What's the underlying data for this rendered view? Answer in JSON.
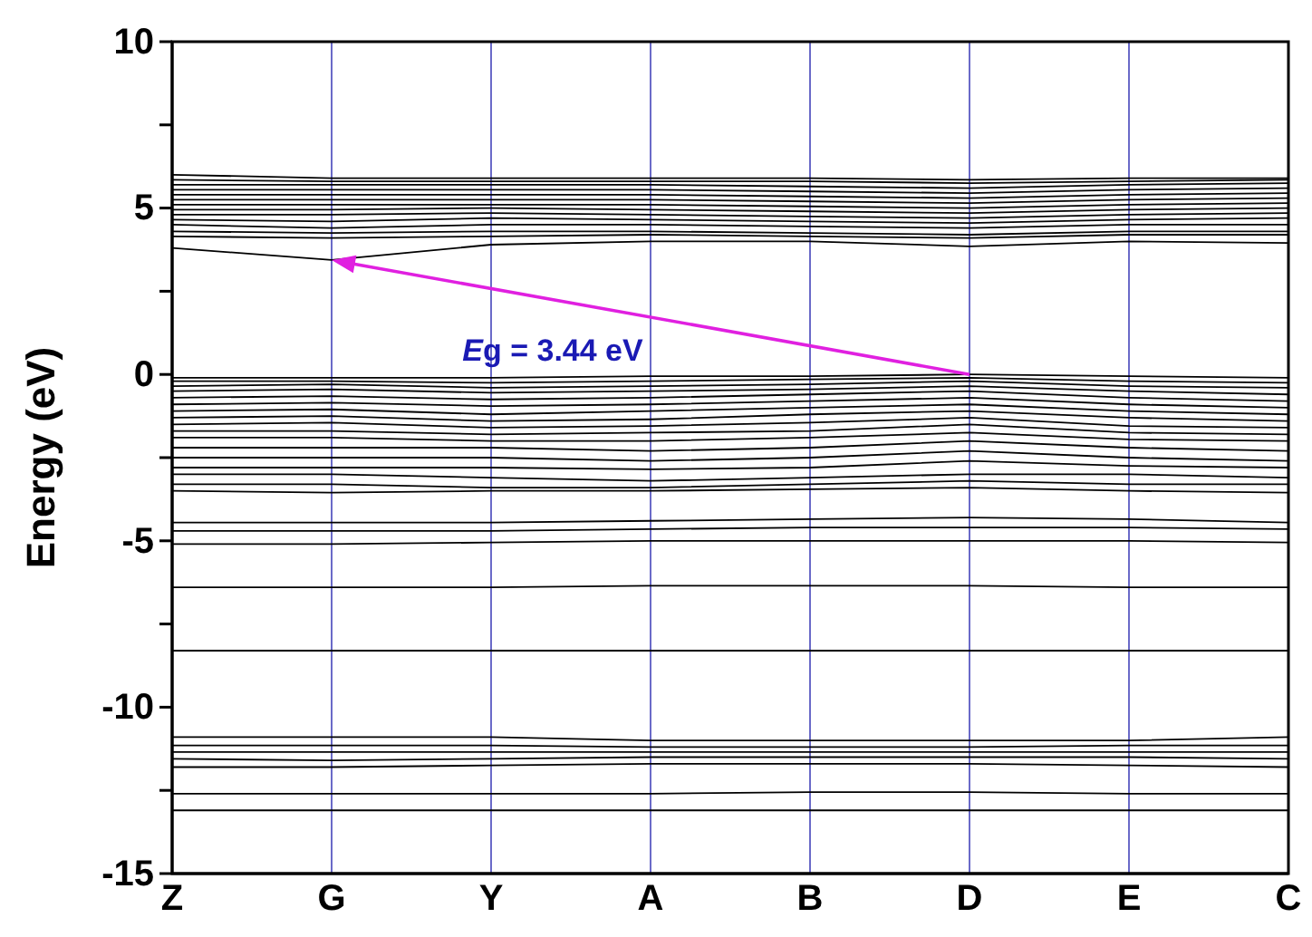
{
  "chart_data": {
    "type": "line",
    "ylabel": "Energy (eV)",
    "ylim": [
      -15,
      10
    ],
    "categories": [
      "Z",
      "G",
      "Y",
      "A",
      "B",
      "D",
      "E",
      "C"
    ],
    "yticks": [
      -15,
      {
        "value": -12.5,
        "label": null
      },
      -10,
      {
        "value": -7.5,
        "label": null
      },
      -5,
      {
        "value": -2.5,
        "label": null
      },
      0,
      {
        "value": 2.5,
        "label": null
      },
      5,
      {
        "value": 7.5,
        "label": null
      },
      10
    ],
    "grid": false,
    "ref_lines": [
      {
        "axis": "x",
        "value": "G",
        "color": "#6a6ac8"
      },
      {
        "axis": "x",
        "value": "Y",
        "color": "#6a6ac8"
      },
      {
        "axis": "x",
        "value": "A",
        "color": "#6a6ac8"
      },
      {
        "axis": "x",
        "value": "B",
        "color": "#6a6ac8"
      },
      {
        "axis": "x",
        "value": "D",
        "color": "#6a6ac8"
      },
      {
        "axis": "x",
        "value": "E",
        "color": "#6a6ac8"
      }
    ],
    "annotations": [
      "Eg = 3.44 eV"
    ],
    "series": [
      {
        "color": "#000000",
        "values": [
          3.8,
          3.44,
          3.9,
          4.0,
          4.0,
          3.85,
          4.0,
          3.95
        ]
      },
      {
        "color": "#000000",
        "values": [
          4.15,
          4.1,
          4.15,
          4.2,
          4.15,
          4.1,
          4.2,
          4.2
        ]
      },
      {
        "color": "#000000",
        "values": [
          4.3,
          4.25,
          4.3,
          4.3,
          4.25,
          4.2,
          4.3,
          4.3
        ]
      },
      {
        "color": "#000000",
        "values": [
          4.5,
          4.4,
          4.5,
          4.5,
          4.45,
          4.4,
          4.5,
          4.5
        ]
      },
      {
        "color": "#000000",
        "values": [
          4.65,
          4.6,
          4.7,
          4.65,
          4.6,
          4.55,
          4.65,
          4.7
        ]
      },
      {
        "color": "#000000",
        "values": [
          4.8,
          4.8,
          4.85,
          4.8,
          4.75,
          4.7,
          4.8,
          4.85
        ]
      },
      {
        "color": "#000000",
        "values": [
          4.95,
          4.95,
          5.0,
          4.95,
          4.9,
          4.85,
          4.95,
          5.0
        ]
      },
      {
        "color": "#000000",
        "values": [
          5.1,
          5.1,
          5.1,
          5.1,
          5.05,
          5.0,
          5.1,
          5.15
        ]
      },
      {
        "color": "#000000",
        "values": [
          5.25,
          5.25,
          5.25,
          5.25,
          5.2,
          5.15,
          5.25,
          5.3
        ]
      },
      {
        "color": "#000000",
        "values": [
          5.4,
          5.4,
          5.4,
          5.4,
          5.35,
          5.3,
          5.4,
          5.45
        ]
      },
      {
        "color": "#000000",
        "values": [
          5.55,
          5.55,
          5.55,
          5.55,
          5.5,
          5.45,
          5.55,
          5.6
        ]
      },
      {
        "color": "#000000",
        "values": [
          5.7,
          5.7,
          5.7,
          5.7,
          5.65,
          5.6,
          5.7,
          5.75
        ]
      },
      {
        "color": "#000000",
        "values": [
          5.85,
          5.8,
          5.8,
          5.8,
          5.8,
          5.75,
          5.8,
          5.85
        ]
      },
      {
        "color": "#000000",
        "values": [
          6.0,
          5.9,
          5.9,
          5.9,
          5.9,
          5.85,
          5.9,
          5.9
        ]
      },
      {
        "color": "#000000",
        "values": [
          -0.1,
          -0.1,
          -0.1,
          -0.05,
          -0.05,
          0,
          -0.05,
          -0.1
        ]
      },
      {
        "color": "#000000",
        "values": [
          -0.2,
          -0.2,
          -0.25,
          -0.2,
          -0.15,
          -0.1,
          -0.2,
          -0.25
        ]
      },
      {
        "color": "#000000",
        "values": [
          -0.35,
          -0.3,
          -0.4,
          -0.35,
          -0.3,
          -0.2,
          -0.35,
          -0.4
        ]
      },
      {
        "color": "#000000",
        "values": [
          -0.5,
          -0.45,
          -0.55,
          -0.5,
          -0.45,
          -0.35,
          -0.5,
          -0.6
        ]
      },
      {
        "color": "#000000",
        "values": [
          -0.7,
          -0.65,
          -0.75,
          -0.7,
          -0.6,
          -0.5,
          -0.7,
          -0.8
        ]
      },
      {
        "color": "#000000",
        "values": [
          -0.9,
          -0.85,
          -0.95,
          -0.9,
          -0.8,
          -0.7,
          -0.9,
          -1.0
        ]
      },
      {
        "color": "#000000",
        "values": [
          -1.1,
          -1.05,
          -1.2,
          -1.1,
          -1.0,
          -0.9,
          -1.1,
          -1.2
        ]
      },
      {
        "color": "#000000",
        "values": [
          -1.3,
          -1.25,
          -1.4,
          -1.35,
          -1.2,
          -1.1,
          -1.3,
          -1.4
        ]
      },
      {
        "color": "#000000",
        "values": [
          -1.5,
          -1.45,
          -1.6,
          -1.55,
          -1.45,
          -1.3,
          -1.55,
          -1.6
        ]
      },
      {
        "color": "#000000",
        "values": [
          -1.7,
          -1.7,
          -1.8,
          -1.75,
          -1.7,
          -1.5,
          -1.75,
          -1.8
        ]
      },
      {
        "color": "#000000",
        "values": [
          -1.9,
          -1.9,
          -2.0,
          -2.0,
          -1.9,
          -1.75,
          -1.95,
          -2.0
        ]
      },
      {
        "color": "#000000",
        "values": [
          -2.2,
          -2.2,
          -2.2,
          -2.3,
          -2.2,
          -2.0,
          -2.2,
          -2.3
        ]
      },
      {
        "color": "#000000",
        "values": [
          -2.5,
          -2.5,
          -2.5,
          -2.6,
          -2.5,
          -2.3,
          -2.5,
          -2.6
        ]
      },
      {
        "color": "#000000",
        "values": [
          -2.8,
          -2.8,
          -2.8,
          -2.85,
          -2.8,
          -2.6,
          -2.75,
          -2.8
        ]
      },
      {
        "color": "#000000",
        "values": [
          -3.0,
          -3.0,
          -3.1,
          -3.2,
          -3.1,
          -3.0,
          -3.0,
          -3.1
        ]
      },
      {
        "color": "#000000",
        "values": [
          -3.3,
          -3.3,
          -3.4,
          -3.4,
          -3.3,
          -3.2,
          -3.3,
          -3.3
        ]
      },
      {
        "color": "#000000",
        "values": [
          -3.5,
          -3.55,
          -3.5,
          -3.5,
          -3.45,
          -3.4,
          -3.5,
          -3.55
        ]
      },
      {
        "color": "#000000",
        "values": [
          -4.45,
          -4.45,
          -4.45,
          -4.4,
          -4.35,
          -4.3,
          -4.35,
          -4.45
        ]
      },
      {
        "color": "#000000",
        "values": [
          -4.7,
          -4.7,
          -4.7,
          -4.65,
          -4.6,
          -4.6,
          -4.6,
          -4.65
        ]
      },
      {
        "color": "#000000",
        "values": [
          -5.1,
          -5.1,
          -5.05,
          -5.0,
          -5.0,
          -5.0,
          -5.0,
          -5.05
        ]
      },
      {
        "color": "#000000",
        "values": [
          -6.4,
          -6.4,
          -6.4,
          -6.35,
          -6.35,
          -6.35,
          -6.4,
          -6.4
        ]
      },
      {
        "color": "#000000",
        "values": [
          -8.3,
          -8.3,
          -8.3,
          -8.3,
          -8.3,
          -8.3,
          -8.3,
          -8.3
        ]
      },
      {
        "color": "#000000",
        "values": [
          -10.9,
          -10.9,
          -10.9,
          -11.0,
          -11.0,
          -11.0,
          -11.0,
          -10.9
        ]
      },
      {
        "color": "#000000",
        "values": [
          -11.15,
          -11.15,
          -11.15,
          -11.2,
          -11.2,
          -11.2,
          -11.15,
          -11.15
        ]
      },
      {
        "color": "#000000",
        "values": [
          -11.35,
          -11.35,
          -11.35,
          -11.35,
          -11.35,
          -11.35,
          -11.35,
          -11.35
        ]
      },
      {
        "color": "#000000",
        "values": [
          -11.55,
          -11.6,
          -11.55,
          -11.5,
          -11.5,
          -11.5,
          -11.5,
          -11.55
        ]
      },
      {
        "color": "#000000",
        "values": [
          -11.8,
          -11.8,
          -11.75,
          -11.7,
          -11.7,
          -11.7,
          -11.75,
          -11.8
        ]
      },
      {
        "color": "#000000",
        "values": [
          -12.6,
          -12.6,
          -12.6,
          -12.6,
          -12.55,
          -12.55,
          -12.6,
          -12.6
        ]
      },
      {
        "color": "#000000",
        "values": [
          -13.1,
          -13.1,
          -13.1,
          -13.1,
          -13.1,
          -13.1,
          -13.1,
          -13.1
        ]
      }
    ]
  }
}
